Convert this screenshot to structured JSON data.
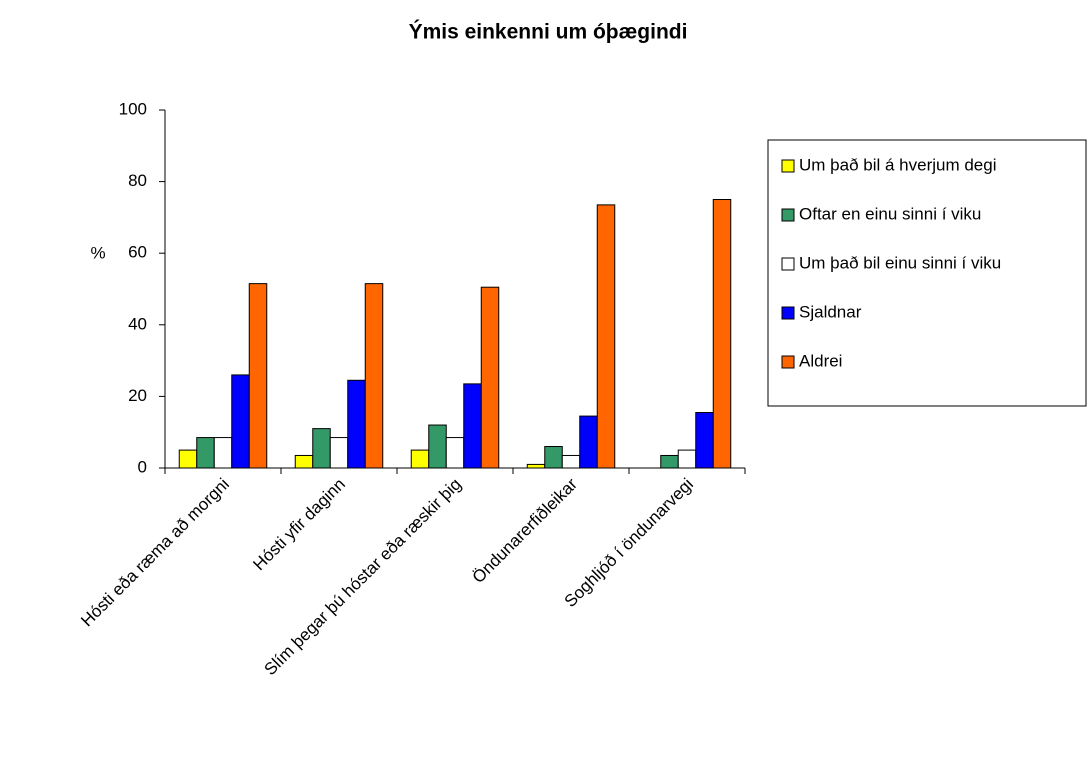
{
  "chart_data": {
    "type": "bar",
    "title": "Ýmis einkenni um óþægindi",
    "y_label": "%",
    "categories": [
      "Hósti eða ræma að morgni",
      "Hósti yfir daginn",
      "Slím þegar þú hóstar eða ræskir þig",
      "Öndunarerfiðleikar",
      "Soghljóð í öndunarvegi"
    ],
    "series": [
      {
        "name": "Um það bil á hverjum degi",
        "color": "#ffff00",
        "values": [
          5,
          3.5,
          5,
          1,
          0
        ]
      },
      {
        "name": "Oftar en einu sinni í viku",
        "color": "#339966",
        "values": [
          8.5,
          11,
          12,
          6,
          3.5
        ]
      },
      {
        "name": "Um það bil einu sinni í viku",
        "color": "#ffffff",
        "values": [
          8.5,
          8.5,
          8.5,
          3.5,
          5
        ]
      },
      {
        "name": "Sjaldnar",
        "color": "#0000ff",
        "values": [
          26,
          24.5,
          23.5,
          14.5,
          15.5
        ]
      },
      {
        "name": "Aldrei",
        "color": "#ff6600",
        "values": [
          51.5,
          51.5,
          50.5,
          73.5,
          75
        ]
      }
    ],
    "ylim": [
      0,
      100
    ],
    "yticks": [
      0,
      20,
      40,
      60,
      80,
      100
    ],
    "grid": false,
    "legend": "right"
  }
}
